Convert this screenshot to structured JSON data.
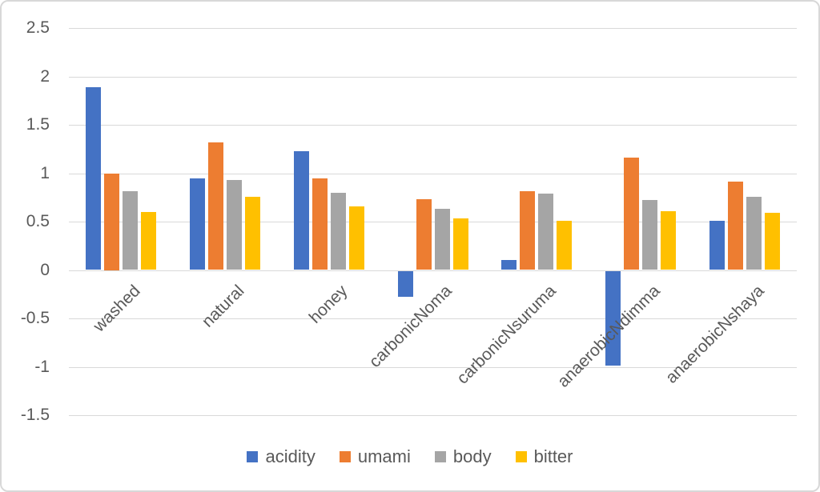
{
  "chart_data": {
    "type": "bar",
    "title": "",
    "categories": [
      "washed",
      "natural",
      "honey",
      "carbonicNoma",
      "carbonicNsuruma",
      "anaerobicNdimma",
      "anaerobicNshaya"
    ],
    "series": [
      {
        "name": "acidity",
        "color": "#4472C4",
        "values": [
          1.89,
          0.95,
          1.23,
          -0.27,
          0.1,
          -0.98,
          0.51
        ]
      },
      {
        "name": "umami",
        "color": "#ED7D31",
        "values": [
          1.0,
          1.32,
          0.95,
          0.73,
          0.81,
          1.16,
          0.91
        ]
      },
      {
        "name": "body",
        "color": "#A5A5A5",
        "values": [
          0.81,
          0.93,
          0.8,
          0.63,
          0.79,
          0.72,
          0.76
        ]
      },
      {
        "name": "bitter",
        "color": "#FFC000",
        "values": [
          0.6,
          0.76,
          0.66,
          0.53,
          0.51,
          0.61,
          0.59
        ]
      }
    ],
    "ylim": [
      -1.5,
      2.5
    ],
    "ytick_step": 0.5,
    "ytick_labels": [
      "2.5",
      "2",
      "1.5",
      "1",
      "0.5",
      "0",
      "-0.5",
      "-1",
      "-1.5"
    ],
    "grid": true,
    "legend_position": "bottom",
    "xlabel": "",
    "ylabel": "",
    "colors": {
      "gridline": "#d9d9d9",
      "axis_text": "#595959",
      "frame_border": "#d8d8d8",
      "background": "#ffffff"
    }
  }
}
